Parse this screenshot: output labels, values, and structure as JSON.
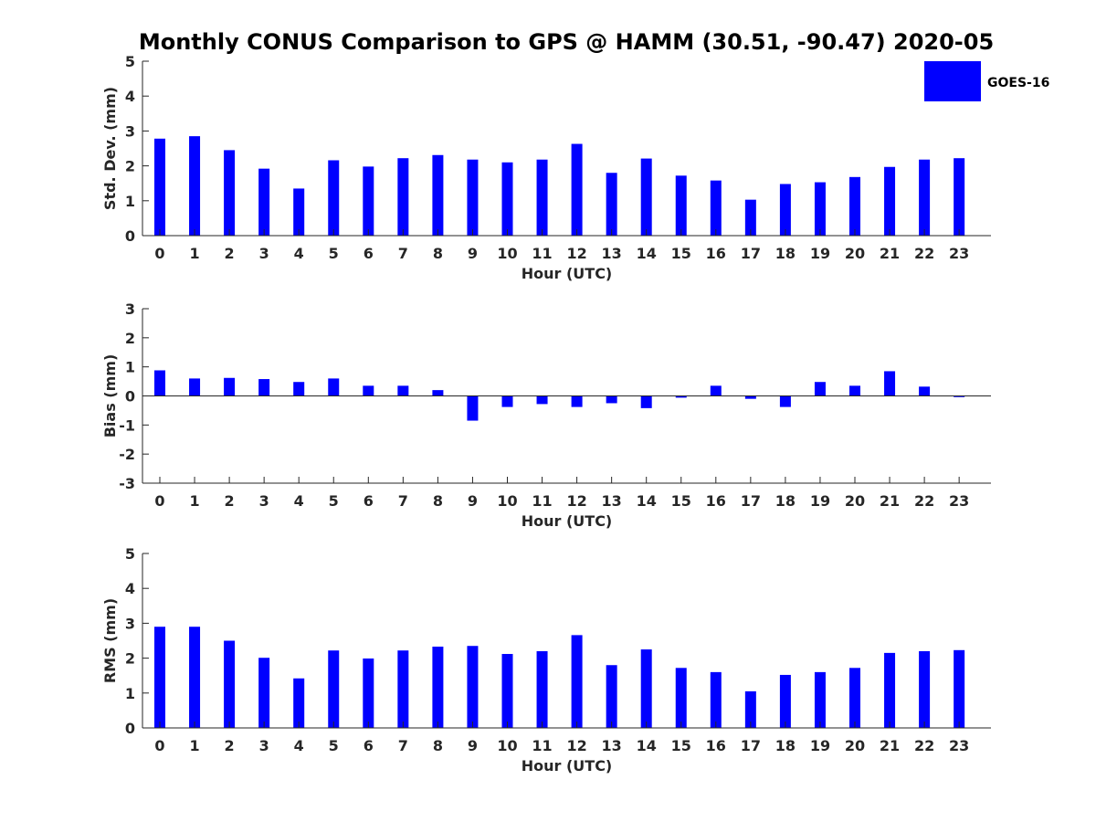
{
  "figure_title": "Monthly CONUS Comparison to GPS @ HAMM (30.51, -90.47) 2020-05",
  "legend": {
    "label": "GOES-16",
    "color": "#0000ff",
    "placement": "top-right"
  },
  "chart_data": [
    {
      "type": "bar",
      "title": "",
      "xlabel": "Hour (UTC)",
      "ylabel": "Std. Dev. (mm)",
      "ylim": [
        0,
        5
      ],
      "yticks": [
        0,
        1,
        2,
        3,
        4,
        5
      ],
      "categories": [
        "0",
        "1",
        "2",
        "3",
        "4",
        "5",
        "6",
        "7",
        "8",
        "9",
        "10",
        "11",
        "12",
        "13",
        "14",
        "15",
        "16",
        "17",
        "18",
        "19",
        "20",
        "21",
        "22",
        "23"
      ],
      "series": [
        {
          "name": "GOES-16",
          "color": "#0000ff",
          "values": [
            2.78,
            2.85,
            2.45,
            1.92,
            1.35,
            2.16,
            1.98,
            2.22,
            2.31,
            2.18,
            2.1,
            2.18,
            2.63,
            1.8,
            2.21,
            1.72,
            1.58,
            1.03,
            1.48,
            1.53,
            1.68,
            1.97,
            2.18,
            2.22
          ]
        }
      ]
    },
    {
      "type": "bar",
      "title": "",
      "xlabel": "Hour (UTC)",
      "ylabel": "Bias (mm)",
      "ylim": [
        -3,
        3
      ],
      "yticks": [
        -3,
        -2,
        -1,
        0,
        1,
        2,
        3
      ],
      "categories": [
        "0",
        "1",
        "2",
        "3",
        "4",
        "5",
        "6",
        "7",
        "8",
        "9",
        "10",
        "11",
        "12",
        "13",
        "14",
        "15",
        "16",
        "17",
        "18",
        "19",
        "20",
        "21",
        "22",
        "23"
      ],
      "series": [
        {
          "name": "GOES-16",
          "color": "#0000ff",
          "values": [
            0.88,
            0.6,
            0.62,
            0.58,
            0.48,
            0.6,
            0.35,
            0.35,
            0.2,
            -0.85,
            -0.38,
            -0.28,
            -0.38,
            -0.25,
            -0.42,
            -0.06,
            0.35,
            -0.1,
            -0.38,
            0.48,
            0.35,
            0.85,
            0.32,
            -0.04
          ]
        }
      ]
    },
    {
      "type": "bar",
      "title": "",
      "xlabel": "Hour (UTC)",
      "ylabel": "RMS (mm)",
      "ylim": [
        0,
        5
      ],
      "yticks": [
        0,
        1,
        2,
        3,
        4,
        5
      ],
      "categories": [
        "0",
        "1",
        "2",
        "3",
        "4",
        "5",
        "6",
        "7",
        "8",
        "9",
        "10",
        "11",
        "12",
        "13",
        "14",
        "15",
        "16",
        "17",
        "18",
        "19",
        "20",
        "21",
        "22",
        "23"
      ],
      "series": [
        {
          "name": "GOES-16",
          "color": "#0000ff",
          "values": [
            2.9,
            2.9,
            2.5,
            2.01,
            1.42,
            2.22,
            1.99,
            2.22,
            2.33,
            2.35,
            2.12,
            2.2,
            2.66,
            1.8,
            2.25,
            1.72,
            1.6,
            1.05,
            1.52,
            1.6,
            1.72,
            2.15,
            2.2,
            2.23
          ]
        }
      ]
    }
  ]
}
